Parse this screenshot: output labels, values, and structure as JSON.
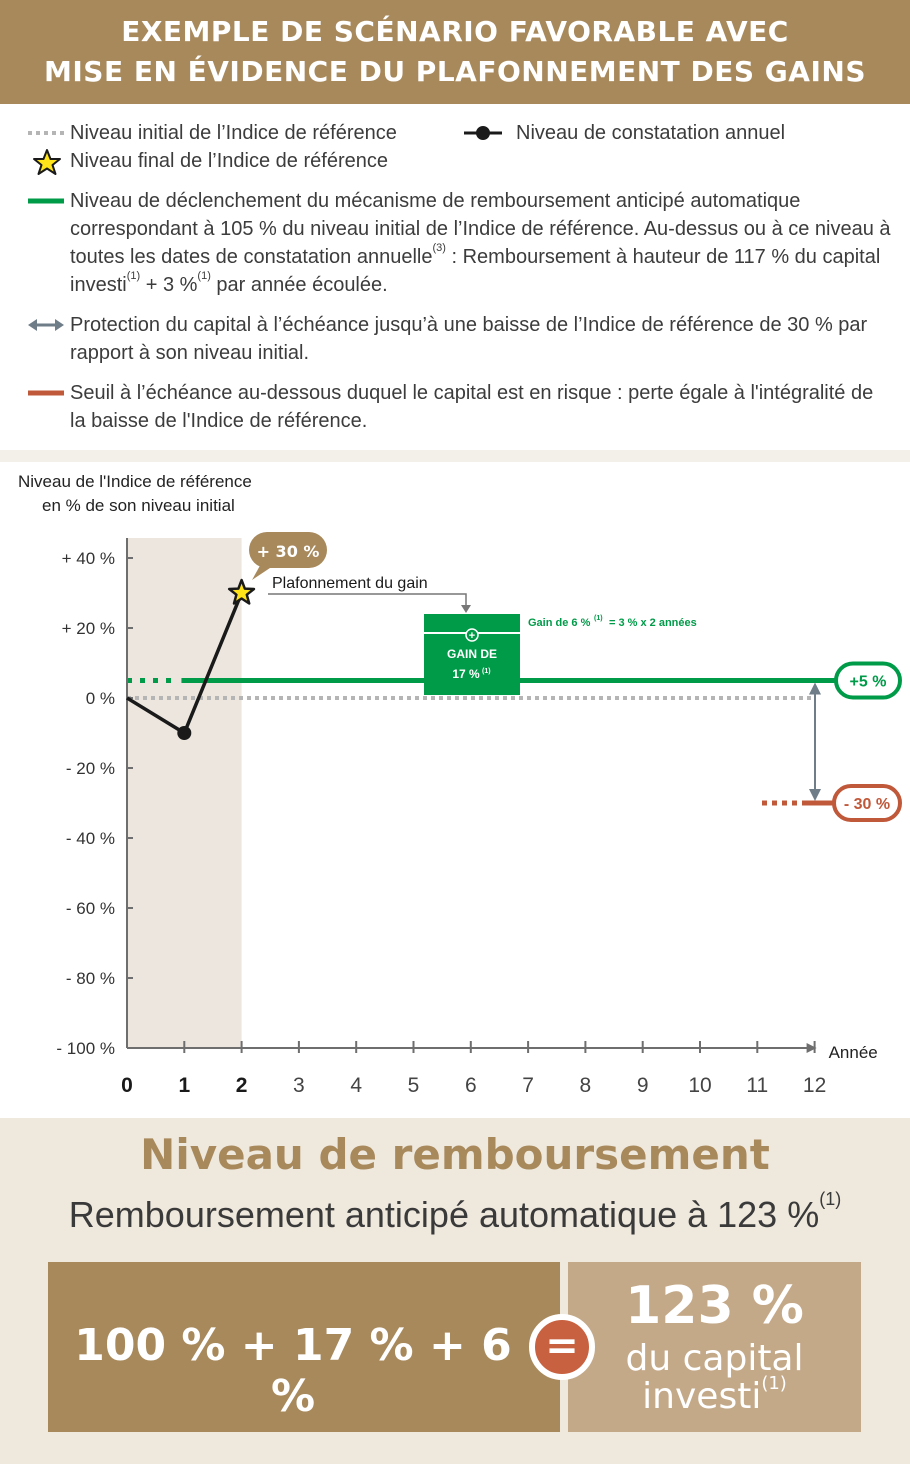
{
  "header": {
    "line1": "EXEMPLE DE SCÉNARIO FAVORABLE AVEC",
    "line2": "MISE EN ÉVIDENCE DU PLAFONNEMENT DES GAINS"
  },
  "legend": {
    "initial": "Niveau initial de l’Indice de référence",
    "annual": "Niveau de constatation annuel",
    "final": "Niveau final de l’Indice de référence",
    "trigger": {
      "line1": "Niveau de déclenchement du mécanisme de remboursement anticipé automatique",
      "line2": "correspondant à 105 % du niveau initial de l’Indice de référence. Au-dessus ou à ce niveau à",
      "line3a": "toutes les dates de constatation annuelle",
      "line3sup": "(3)",
      "line3b": " : Remboursement à hauteur de 117 % du capital",
      "line4a": "investi",
      "line4sup1": "(1)",
      "line4b": " + 3 %",
      "line4sup2": "(1)",
      "line4c": " par année écoulée."
    },
    "protection": {
      "line1": "Protection du capital à l’échéance jusqu’à une baisse de l’Indice de référence de 30 % par",
      "line2": "rapport à son niveau initial."
    },
    "risk": {
      "line1": "Seuil à l’échéance au-dessous duquel le capital est en risque : perte égale à l'intégralité de",
      "line2": "la baisse de l'Indice de référence."
    }
  },
  "chart_data": {
    "type": "line",
    "ylabel_line1": "Niveau de l'Indice de référence",
    "ylabel_line2": "en % de son niveau initial",
    "xlabel": "Année",
    "ylim": [
      -100,
      40
    ],
    "xlim": [
      0,
      12
    ],
    "y_ticks": [
      40,
      20,
      0,
      -20,
      -40,
      -60,
      -80,
      -100
    ],
    "y_tick_labels": [
      "+ 40 %",
      "+ 20 %",
      "0 %",
      "- 20 %",
      "- 40 %",
      "- 60 %",
      "- 80 %",
      "- 100 %"
    ],
    "x_ticks": [
      0,
      1,
      2,
      3,
      4,
      5,
      6,
      7,
      8,
      9,
      10,
      11,
      12
    ],
    "x_tick_labels": [
      "0",
      "1",
      "2",
      "3",
      "4",
      "5",
      "6",
      "7",
      "8",
      "9",
      "10",
      "11",
      "12"
    ],
    "series": [
      {
        "x": [
          0,
          1,
          2
        ],
        "values": [
          0,
          -10,
          30
        ]
      }
    ],
    "final_point": {
      "x": 2,
      "y": 30
    },
    "initial_level": 0,
    "trigger_level": 5,
    "risk_threshold": -30,
    "shaded_range": [
      0,
      2
    ],
    "annotations": {
      "peak": "+ 30 %",
      "cap": "Plafonnement du gain",
      "gain6": "Gain de 6 %",
      "gain6_sup": "(1)",
      "gain6_rest": "= 3 % x 2 années",
      "gain17_line1": "GAIN DE",
      "gain17_line2": "17 %",
      "gain17_sup": "(1)",
      "trigger_badge": "+5 %",
      "risk_badge": "- 30 %"
    },
    "colors": {
      "trigger": "#009b48",
      "risk": "#c0583a",
      "initial": "#b5b5b5",
      "series": "#1a1a1a",
      "star": "#ffe419",
      "shade": "#ece6de",
      "annotation": "#a8895c",
      "arrow": "#6e7d88"
    }
  },
  "bottom": {
    "title": "Niveau de remboursement",
    "subtitle": "Remboursement anticipé automatique à 123 %",
    "subtitle_sup": "(1)",
    "formula": "100 % + 17 % + 6 %",
    "equals": "=",
    "result_big": "123 %",
    "result_line1": "du capital",
    "result_line2": "investi",
    "result_sup": "(1)"
  }
}
